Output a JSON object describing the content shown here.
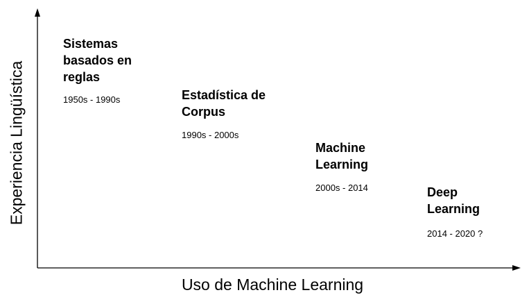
{
  "axes": {
    "y_label": "Experiencia Lingüística",
    "x_label": "Uso de Machine Learning"
  },
  "stages": [
    {
      "title": "Sistemas\nbasados en\nreglas",
      "period": "1950s - 1990s"
    },
    {
      "title": "Estadística de\nCorpus",
      "period": "1990s - 2000s"
    },
    {
      "title": "Machine\nLearning",
      "period": "2000s - 2014"
    },
    {
      "title": "Deep\nLearning",
      "period": "2014 - 2020 ?"
    }
  ]
}
